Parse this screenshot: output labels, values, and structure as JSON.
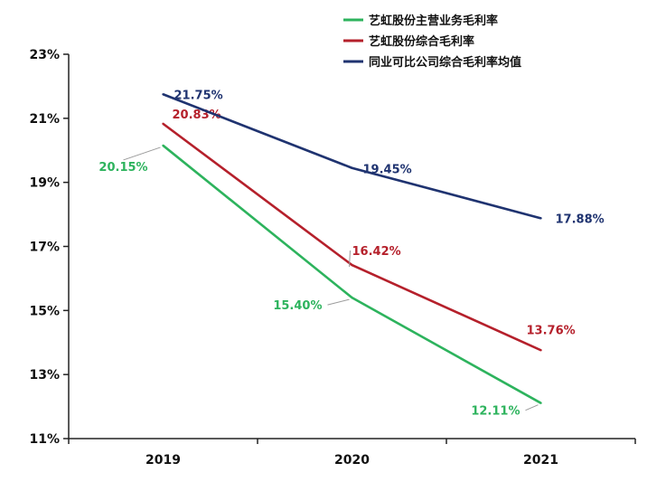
{
  "chart_data": {
    "type": "line",
    "categories": [
      "2019",
      "2020",
      "2021"
    ],
    "ylim": [
      11,
      23
    ],
    "y_ticks": [
      "11%",
      "13%",
      "15%",
      "17%",
      "19%",
      "21%",
      "23%"
    ],
    "y_tick_values": [
      11,
      13,
      15,
      17,
      19,
      21,
      23
    ],
    "grid": false,
    "legend_position": "top-right",
    "series": [
      {
        "name": "艺虹股份主营业务毛利率",
        "color": "#2db35d",
        "values": [
          20.15,
          15.4,
          12.11
        ],
        "labels": [
          "20.15%",
          "15.40%",
          "12.11%"
        ]
      },
      {
        "name": "艺虹股份综合毛利率",
        "color": "#b5202b",
        "values": [
          20.83,
          16.42,
          13.76
        ],
        "labels": [
          "20.83%",
          "16.42%",
          "13.76%"
        ]
      },
      {
        "name": "同业可比公司综合毛利率均值",
        "color": "#1f3370",
        "values": [
          21.75,
          19.45,
          17.88
        ],
        "labels": [
          "21.75%",
          "19.45%",
          "17.88%"
        ]
      }
    ]
  }
}
